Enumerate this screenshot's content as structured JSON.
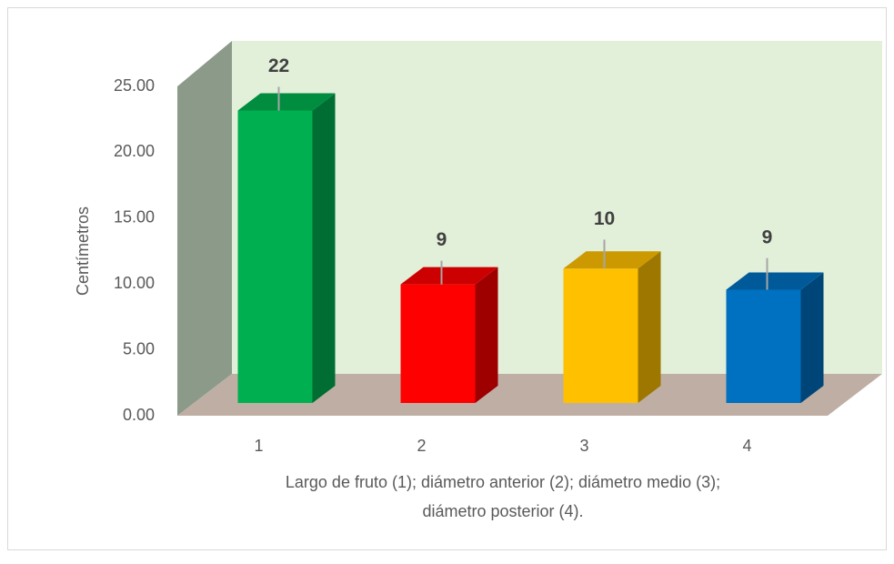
{
  "chart_data": {
    "type": "bar3d",
    "ylabel": "Centímetros",
    "xlabel": [
      "Largo de fruto (1); diámetro anterior (2); diámetro medio (3);",
      "diámetro posterior (4)."
    ],
    "categories": [
      "1",
      "2",
      "3",
      "4"
    ],
    "values": [
      22.2,
      9.0,
      10.2,
      8.6
    ],
    "value_labels": [
      "22",
      "9",
      "10",
      "9"
    ],
    "errors": [
      1.8,
      1.8,
      2.2,
      2.4
    ],
    "colors": [
      "#00b050",
      "#ff0000",
      "#ffc000",
      "#0070c0"
    ],
    "ylim": [
      0,
      25
    ],
    "yticks": [
      {
        "value": 0,
        "label": "0.00"
      },
      {
        "value": 5,
        "label": "5.00"
      },
      {
        "value": 10,
        "label": "10.00"
      },
      {
        "value": 15,
        "label": "15.00"
      },
      {
        "value": 20,
        "label": "20.00"
      },
      {
        "value": 25,
        "label": "25.00"
      }
    ]
  }
}
